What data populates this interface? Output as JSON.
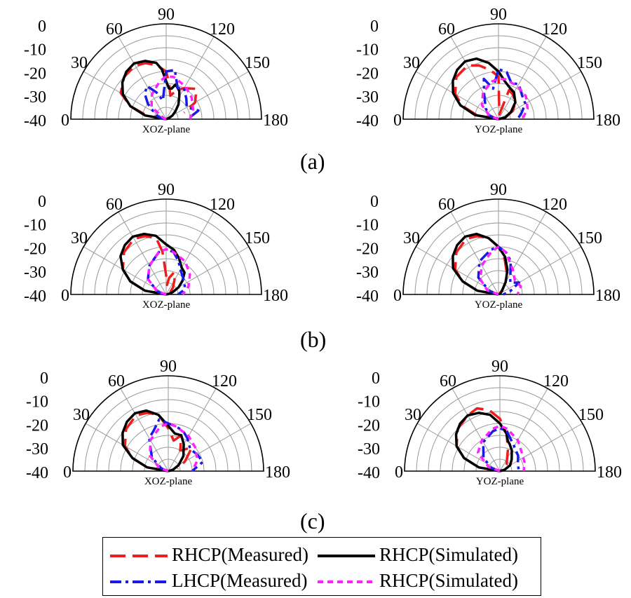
{
  "figure": {
    "panel_labels": [
      "(a)",
      "(b)",
      "(c)"
    ],
    "legend": [
      {
        "label": "RHCP(Measured)",
        "color": "#ee1c1c",
        "style": "long-dash"
      },
      {
        "label": "RHCP(Simulated)",
        "color": "#000000",
        "style": "solid"
      },
      {
        "label": "LHCP(Measured)",
        "color": "#1a1ae6",
        "style": "dash-dot"
      },
      {
        "label": "RHCP(Simulated)",
        "color": "#ff22ff",
        "style": "short-dash"
      }
    ]
  },
  "chart_data": [
    {
      "type": "polar-half",
      "panel": "(a)",
      "plane": "XOZ-plane",
      "radial_range": [
        -40,
        0
      ],
      "radial_ticks": [
        "0",
        "-10",
        "-20",
        "-30",
        "-40"
      ],
      "angle_ticks": [
        "0",
        "30",
        "60",
        "90",
        "120",
        "150",
        "180"
      ],
      "series": [
        {
          "name": "RHCP(Measured)",
          "angles": [
            0,
            10,
            20,
            30,
            45,
            60,
            70,
            80,
            90,
            95,
            100,
            110,
            120,
            135,
            150,
            160
          ],
          "values": [
            -40,
            -32,
            -24,
            -18,
            -15,
            -14,
            -15,
            -17,
            -20,
            -25,
            -30,
            -27,
            -25,
            -22,
            -26,
            -32
          ]
        },
        {
          "name": "RHCP(Simulated)",
          "angles": [
            0,
            10,
            20,
            30,
            40,
            50,
            60,
            70,
            80,
            85,
            90,
            95,
            100,
            105,
            110,
            115,
            120,
            130,
            140,
            150,
            160,
            170,
            180
          ],
          "values": [
            -40,
            -31,
            -24,
            -19,
            -16,
            -14,
            -13,
            -14,
            -16,
            -19,
            -24,
            -27,
            -27,
            -25,
            -26,
            -27,
            -29,
            -32,
            -35,
            -37,
            -39,
            -40,
            -40
          ]
        },
        {
          "name": "LHCP(Measured)",
          "angles": [
            0,
            10,
            20,
            30,
            40,
            50,
            60,
            70,
            80,
            90,
            100,
            110,
            120,
            135,
            150,
            165,
            180
          ],
          "values": [
            -40,
            -38,
            -36,
            -34,
            -30,
            -26,
            -24,
            -28,
            -32,
            -20,
            -19,
            -26,
            -25,
            -28,
            -30,
            -26,
            -31
          ]
        },
        {
          "name": "RHCP(Simulated)",
          "angles": [
            0,
            20,
            40,
            60,
            80,
            90,
            100,
            120,
            140,
            160,
            180
          ],
          "values": [
            -40,
            -39,
            -32,
            -28,
            -24,
            -22,
            -22,
            -24,
            -26,
            -28,
            -30
          ]
        }
      ]
    },
    {
      "type": "polar-half",
      "panel": "(a)",
      "plane": "YOZ-plane",
      "radial_range": [
        -40,
        0
      ],
      "radial_ticks": [
        "0",
        "-10",
        "-20",
        "-30",
        "-40"
      ],
      "angle_ticks": [
        "0",
        "30",
        "60",
        "90",
        "120",
        "150",
        "180"
      ],
      "series": [
        {
          "name": "RHCP(Measured)",
          "angles": [
            0,
            10,
            20,
            30,
            45,
            60,
            70,
            80,
            90,
            100,
            110,
            120,
            135,
            150,
            165,
            180
          ],
          "values": [
            -40,
            -31,
            -24,
            -19,
            -15,
            -14,
            -16,
            -19,
            -22,
            -38,
            -27,
            -28,
            -30,
            -33,
            -37,
            -40
          ]
        },
        {
          "name": "RHCP(Simulated)",
          "angles": [
            0,
            10,
            20,
            30,
            40,
            50,
            60,
            70,
            80,
            90,
            100,
            110,
            120,
            135,
            150,
            165,
            180
          ],
          "values": [
            -40,
            -30,
            -23,
            -18,
            -15,
            -13,
            -12,
            -13,
            -16,
            -20,
            -24,
            -26,
            -27,
            -30,
            -34,
            -37,
            -40
          ]
        },
        {
          "name": "LHCP(Measured)",
          "angles": [
            0,
            20,
            40,
            60,
            70,
            80,
            90,
            100,
            110,
            120,
            135,
            150,
            165,
            180
          ],
          "values": [
            -40,
            -36,
            -33,
            -28,
            -22,
            -27,
            -19,
            -20,
            -24,
            -23,
            -26,
            -27,
            -30,
            -32
          ]
        },
        {
          "name": "RHCP(Simulated)",
          "angles": [
            0,
            20,
            40,
            60,
            80,
            90,
            100,
            120,
            140,
            160,
            180
          ],
          "values": [
            -40,
            -36,
            -31,
            -27,
            -24,
            -23,
            -23,
            -24,
            -25,
            -27,
            -30
          ]
        }
      ]
    },
    {
      "type": "polar-half",
      "panel": "(b)",
      "plane": "XOZ-plane",
      "radial_range": [
        -40,
        0
      ],
      "radial_ticks": [
        "0",
        "-10",
        "-20",
        "-30",
        "-40"
      ],
      "angle_ticks": [
        "0",
        "30",
        "60",
        "90",
        "120",
        "150",
        "180"
      ],
      "series": [
        {
          "name": "RHCP(Measured)",
          "angles": [
            0,
            10,
            20,
            30,
            45,
            60,
            70,
            80,
            85,
            90,
            95,
            100,
            110,
            120,
            135,
            150
          ],
          "values": [
            -40,
            -31,
            -24,
            -19,
            -15,
            -13,
            -14,
            -16,
            -22,
            -32,
            -36,
            -33,
            -30,
            -33,
            -36,
            -38
          ]
        },
        {
          "name": "RHCP(Simulated)",
          "angles": [
            0,
            10,
            20,
            30,
            40,
            50,
            60,
            70,
            80,
            90,
            100,
            110,
            120,
            130,
            140,
            150,
            160,
            170,
            180
          ],
          "values": [
            -40,
            -31,
            -24,
            -19,
            -15,
            -13,
            -12,
            -13,
            -15,
            -19,
            -21,
            -24,
            -27,
            -28,
            -31,
            -34,
            -37,
            -39,
            -40
          ]
        },
        {
          "name": "LHCP(Measured)",
          "angles": [
            0,
            10,
            20,
            40,
            60,
            80,
            90,
            100,
            110,
            120,
            135,
            150,
            165,
            180
          ],
          "values": [
            -40,
            -38,
            -36,
            -30,
            -26,
            -22,
            -21,
            -22,
            -25,
            -28,
            -30,
            -31,
            -32,
            -35
          ]
        },
        {
          "name": "RHCP(Simulated)",
          "angles": [
            0,
            20,
            40,
            60,
            80,
            90,
            100,
            120,
            140,
            160,
            180
          ],
          "values": [
            -40,
            -36,
            -30,
            -26,
            -22,
            -21,
            -22,
            -24,
            -27,
            -30,
            -33
          ]
        }
      ]
    },
    {
      "type": "polar-half",
      "panel": "(b)",
      "plane": "YOZ-plane",
      "radial_range": [
        -40,
        0
      ],
      "radial_ticks": [
        "0",
        "-10",
        "-20",
        "-30",
        "-40"
      ],
      "angle_ticks": [
        "0",
        "30",
        "60",
        "90",
        "120",
        "150",
        "180"
      ],
      "series": [
        {
          "name": "RHCP(Measured)",
          "angles": [
            0,
            10,
            20,
            30,
            45,
            60,
            70,
            80,
            90,
            100,
            110,
            120,
            135,
            150,
            165,
            180
          ],
          "values": [
            -40,
            -31,
            -24,
            -19,
            -15,
            -13,
            -14,
            -16,
            -20,
            -25,
            -30,
            -34,
            -38,
            -40,
            -39,
            -40
          ]
        },
        {
          "name": "RHCP(Simulated)",
          "angles": [
            0,
            10,
            20,
            30,
            40,
            50,
            60,
            70,
            80,
            90,
            100,
            110,
            120,
            135,
            150,
            165,
            180
          ],
          "values": [
            -40,
            -31,
            -24,
            -18,
            -15,
            -13,
            -12,
            -13,
            -16,
            -20,
            -24,
            -29,
            -34,
            -38,
            -39,
            -40,
            -40
          ]
        },
        {
          "name": "LHCP(Measured)",
          "angles": [
            0,
            20,
            40,
            60,
            80,
            90,
            100,
            110,
            120,
            135,
            150,
            165,
            180
          ],
          "values": [
            -40,
            -36,
            -29,
            -24,
            -21,
            -20,
            -22,
            -25,
            -30,
            -33,
            -30,
            -35,
            -38
          ]
        },
        {
          "name": "RHCP(Simulated)",
          "angles": [
            0,
            20,
            40,
            60,
            80,
            90,
            100,
            120,
            140,
            160,
            180
          ],
          "values": [
            -40,
            -35,
            -30,
            -26,
            -22,
            -20,
            -22,
            -28,
            -31,
            -30,
            -32
          ]
        }
      ]
    },
    {
      "type": "polar-half",
      "panel": "(c)",
      "plane": "XOZ-plane",
      "radial_range": [
        -40,
        0
      ],
      "radial_ticks": [
        "0",
        "-10",
        "-20",
        "-30",
        "-40"
      ],
      "angle_ticks": [
        "0",
        "30",
        "60",
        "90",
        "120",
        "150",
        "180"
      ],
      "series": [
        {
          "name": "RHCP(Measured)",
          "angles": [
            0,
            10,
            20,
            30,
            45,
            60,
            70,
            80,
            90,
            100,
            110,
            120,
            135,
            150,
            165
          ],
          "values": [
            -40,
            -31,
            -24,
            -19,
            -15,
            -13,
            -14,
            -16,
            -22,
            -27,
            -24,
            -30,
            -26,
            -32,
            -36
          ]
        },
        {
          "name": "RHCP(Simulated)",
          "angles": [
            0,
            10,
            20,
            30,
            40,
            50,
            60,
            70,
            80,
            90,
            100,
            110,
            120,
            135,
            150,
            165,
            180
          ],
          "values": [
            -40,
            -31,
            -24,
            -18,
            -15,
            -13,
            -12,
            -13,
            -16,
            -21,
            -24,
            -24,
            -27,
            -31,
            -35,
            -38,
            -40
          ]
        },
        {
          "name": "LHCP(Measured)",
          "angles": [
            0,
            20,
            40,
            60,
            70,
            80,
            90,
            100,
            110,
            120,
            135,
            150,
            165,
            180
          ],
          "values": [
            -40,
            -37,
            -31,
            -24,
            -22,
            -18,
            -20,
            -21,
            -22,
            -24,
            -27,
            -26,
            -25,
            -30
          ]
        },
        {
          "name": "RHCP(Simulated)",
          "angles": [
            0,
            20,
            40,
            60,
            80,
            90,
            100,
            120,
            140,
            160,
            180
          ],
          "values": [
            -40,
            -36,
            -30,
            -25,
            -21,
            -20,
            -21,
            -23,
            -25,
            -27,
            -30
          ]
        }
      ]
    },
    {
      "type": "polar-half",
      "panel": "(c)",
      "plane": "YOZ-plane",
      "radial_range": [
        -40,
        0
      ],
      "radial_ticks": [
        "0",
        "-10",
        "-20",
        "-30",
        "-40"
      ],
      "angle_ticks": [
        "0",
        "30",
        "60",
        "90",
        "120",
        "150",
        "180"
      ],
      "series": [
        {
          "name": "RHCP(Measured)",
          "angles": [
            0,
            10,
            20,
            30,
            45,
            60,
            70,
            80,
            90,
            100,
            110,
            120,
            135,
            150,
            165
          ],
          "values": [
            -40,
            -31,
            -24,
            -19,
            -15,
            -13,
            -12,
            -14,
            -18,
            -24,
            -30,
            -34,
            -36,
            -38,
            -40
          ]
        },
        {
          "name": "RHCP(Simulated)",
          "angles": [
            0,
            10,
            20,
            30,
            40,
            50,
            60,
            70,
            80,
            90,
            100,
            105,
            110,
            120,
            135,
            150,
            165,
            180
          ],
          "values": [
            -40,
            -31,
            -24,
            -19,
            -16,
            -14,
            -13,
            -14,
            -16,
            -20,
            -24,
            -27,
            -28,
            -30,
            -33,
            -35,
            -38,
            -40
          ]
        },
        {
          "name": "LHCP(Measured)",
          "angles": [
            0,
            20,
            40,
            60,
            80,
            90,
            100,
            120,
            140,
            160,
            180
          ],
          "values": [
            -40,
            -36,
            -31,
            -26,
            -23,
            -22,
            -23,
            -28,
            -30,
            -32,
            -32
          ]
        },
        {
          "name": "RHCP(Simulated)",
          "angles": [
            0,
            20,
            40,
            60,
            80,
            90,
            100,
            120,
            140,
            160,
            180
          ],
          "values": [
            -40,
            -35,
            -28,
            -25,
            -22,
            -21,
            -22,
            -25,
            -28,
            -29,
            -30
          ]
        }
      ]
    }
  ]
}
